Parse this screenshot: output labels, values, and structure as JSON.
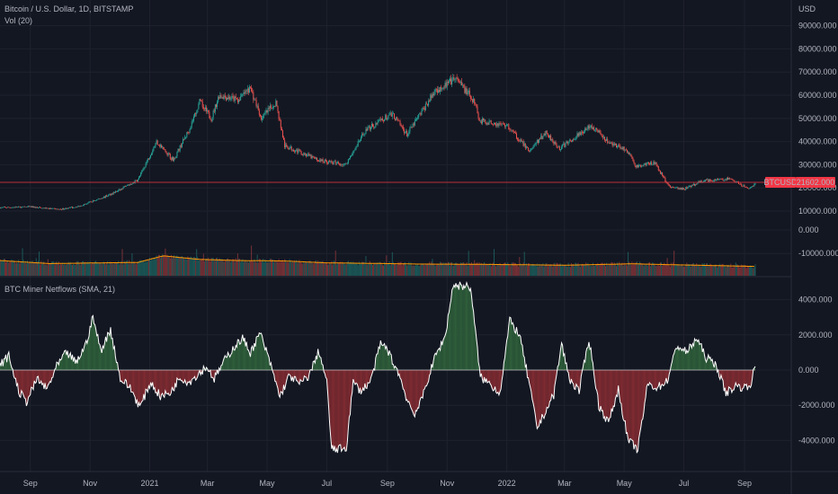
{
  "header": {
    "symbol_title": "Bitcoin / U.S. Dollar, 1D, BITSTAMP",
    "volume_title": "Vol (20)",
    "currency": "USD"
  },
  "indicator": {
    "title": "BTC Miner Netflows (SMA, 21)"
  },
  "price_tag": {
    "symbol": "BTCUSD",
    "value": "21602.000",
    "color": "#f23645"
  },
  "colors": {
    "background": "#131722",
    "grid": "#1e222d",
    "candle_up": "#26a69a",
    "candle_down": "#ef5350",
    "volume_ma": "#ff9800",
    "netflow_line": "#ffffff",
    "netflow_positive_fill": "#2e5d3a",
    "netflow_negative_fill": "#7d2a31"
  },
  "chart_data": [
    {
      "type": "candlestick",
      "title": "Bitcoin / U.S. Dollar, 1D, BITSTAMP",
      "ylabel": "USD",
      "yticks": [
        "90000.000",
        "80000.000",
        "70000.000",
        "60000.000",
        "50000.000",
        "40000.000",
        "30000.000",
        "20000.000",
        "10000.000"
      ],
      "ylim": [
        7000,
        95000
      ],
      "x_ticks": [
        "Sep",
        "Nov",
        "2021",
        "Mar",
        "May",
        "Jul",
        "Sep",
        "Nov",
        "2022",
        "Mar",
        "May",
        "Jul",
        "Sep"
      ],
      "last_price": 21602,
      "close_path": {
        "dates": [
          "2020-08-01",
          "2020-09-01",
          "2020-10-01",
          "2020-10-20",
          "2020-11-15",
          "2020-12-01",
          "2020-12-20",
          "2021-01-08",
          "2021-01-25",
          "2021-02-10",
          "2021-02-21",
          "2021-03-05",
          "2021-03-13",
          "2021-04-01",
          "2021-04-14",
          "2021-04-25",
          "2021-05-10",
          "2021-05-19",
          "2021-06-01",
          "2021-06-22",
          "2021-07-20",
          "2021-08-10",
          "2021-09-06",
          "2021-09-21",
          "2021-10-20",
          "2021-11-10",
          "2021-11-30",
          "2021-12-04",
          "2022-01-01",
          "2022-01-24",
          "2022-02-10",
          "2022-02-24",
          "2022-03-28",
          "2022-04-15",
          "2022-05-05",
          "2022-05-12",
          "2022-06-01",
          "2022-06-13",
          "2022-06-18",
          "2022-07-01",
          "2022-07-20",
          "2022-08-15",
          "2022-09-06",
          "2022-09-12"
        ],
        "values": [
          11500,
          11800,
          10700,
          12000,
          16000,
          19000,
          23500,
          40000,
          32000,
          45000,
          57000,
          50000,
          60000,
          58000,
          63000,
          50000,
          57000,
          38000,
          36000,
          32000,
          30000,
          45000,
          52000,
          43000,
          62000,
          67000,
          57000,
          49000,
          47000,
          36000,
          44000,
          37000,
          47000,
          40000,
          36000,
          29000,
          31000,
          22500,
          20000,
          19500,
          23000,
          24000,
          19500,
          22000
        ]
      }
    },
    {
      "type": "bar",
      "title": "Vol (20)",
      "yticks": [
        "0.000",
        "-10000.000"
      ],
      "ylim": [
        -17000,
        6000
      ],
      "moving_average": {
        "dates": [
          "2020-08-01",
          "2020-09-20",
          "2020-12-20",
          "2021-01-15",
          "2021-02-20",
          "2021-04-01",
          "2021-05-20",
          "2021-07-01",
          "2021-08-15",
          "2021-10-01",
          "2021-12-01",
          "2022-03-01",
          "2022-05-10",
          "2022-06-20",
          "2022-09-12"
        ],
        "values": [
          -13000,
          -14300,
          -13800,
          -11000,
          -12500,
          -13000,
          -13200,
          -14000,
          -14200,
          -14500,
          -14600,
          -15000,
          -14400,
          -14800,
          -15500
        ]
      }
    },
    {
      "type": "area",
      "title": "BTC Miner Netflows (SMA, 21)",
      "yticks": [
        "4000.000",
        "2000.000",
        "0.000",
        "-2000.000",
        "-4000.000"
      ],
      "ylim": [
        -5500,
        5800
      ],
      "points": {
        "dates": [
          "2020-08-01",
          "2020-08-10",
          "2020-08-20",
          "2020-08-28",
          "2020-09-08",
          "2020-09-18",
          "2020-09-28",
          "2020-10-08",
          "2020-10-18",
          "2020-10-28",
          "2020-11-04",
          "2020-11-12",
          "2020-11-22",
          "2020-12-02",
          "2020-12-12",
          "2020-12-22",
          "2021-01-02",
          "2021-01-12",
          "2021-01-22",
          "2021-02-01",
          "2021-02-10",
          "2021-02-18",
          "2021-02-28",
          "2021-03-08",
          "2021-03-18",
          "2021-03-28",
          "2021-04-06",
          "2021-04-14",
          "2021-04-24",
          "2021-05-04",
          "2021-05-14",
          "2021-05-24",
          "2021-06-03",
          "2021-06-13",
          "2021-06-23",
          "2021-07-01",
          "2021-07-06",
          "2021-07-13",
          "2021-07-21",
          "2021-07-28",
          "2021-08-05",
          "2021-08-15",
          "2021-08-25",
          "2021-09-01",
          "2021-09-06",
          "2021-09-12",
          "2021-09-20",
          "2021-09-28",
          "2021-10-04",
          "2021-10-12",
          "2021-10-20",
          "2021-10-30",
          "2021-11-07",
          "2021-11-15",
          "2021-11-25",
          "2021-12-05",
          "2021-12-15",
          "2021-12-25",
          "2022-01-04",
          "2022-01-14",
          "2022-01-24",
          "2022-02-01",
          "2022-02-10",
          "2022-02-18",
          "2022-02-26",
          "2022-03-06",
          "2022-03-16",
          "2022-03-26",
          "2022-04-05",
          "2022-04-15",
          "2022-04-25",
          "2022-05-05",
          "2022-05-15",
          "2022-05-25",
          "2022-06-04",
          "2022-06-14",
          "2022-06-24",
          "2022-07-04",
          "2022-07-14",
          "2022-07-24",
          "2022-08-03",
          "2022-08-13",
          "2022-08-23",
          "2022-09-02",
          "2022-09-08",
          "2022-09-12"
        ],
        "values": [
          300,
          800,
          -1200,
          -1800,
          -500,
          -1100,
          200,
          1000,
          400,
          1500,
          3000,
          1100,
          2300,
          -500,
          -1000,
          -2100,
          -700,
          -1500,
          -1300,
          -400,
          -700,
          -300,
          200,
          -500,
          500,
          1300,
          1800,
          1000,
          2100,
          400,
          -1500,
          -300,
          -800,
          -300,
          1100,
          -700,
          -4500,
          -4500,
          -4400,
          -700,
          -1200,
          -600,
          1500,
          1200,
          500,
          -100,
          -1500,
          -2500,
          -2000,
          -600,
          800,
          1900,
          4800,
          4800,
          4700,
          -400,
          -800,
          -1300,
          2800,
          2000,
          -800,
          -3300,
          -2300,
          -1400,
          1500,
          -500,
          -1200,
          1800,
          -2000,
          -3000,
          -1100,
          -4000,
          -4500,
          -800,
          -1000,
          -600,
          1400,
          1000,
          1800,
          700,
          300,
          -1300,
          -900,
          -1000,
          -700,
          300
        ]
      }
    }
  ]
}
